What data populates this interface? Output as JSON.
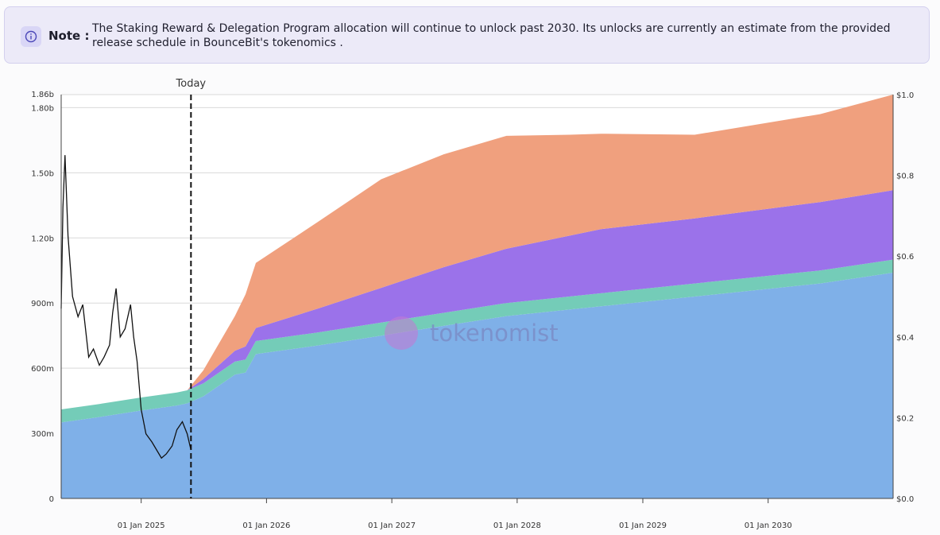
{
  "note": {
    "label": "Note",
    "colon": ":",
    "text": "The Staking Reward & Delegation Program allocation will continue to unlock past 2030. Its unlocks are currently an estimate from the provided release schedule in BounceBit's tokenomics .",
    "icon": "info-icon"
  },
  "watermark": "tokenomist",
  "chart_data": {
    "type": "area",
    "stacked": true,
    "grid": "horizontal",
    "legend": "none",
    "today_label": "Today",
    "x_range": [
      "2024-05-13",
      "2030-12-31"
    ],
    "x_ticks": [
      "01 Jan 2025",
      "01 Jan 2026",
      "01 Jan 2027",
      "01 Jan 2028",
      "01 Jan 2029",
      "01 Jan 2030"
    ],
    "x_tick_dates": [
      "2025-01-01",
      "2026-01-01",
      "2027-01-01",
      "2028-01-01",
      "2029-01-01",
      "2030-01-01"
    ],
    "today_date": "2025-05-26",
    "left_axis": {
      "ylim": [
        0,
        1860000000
      ],
      "ticks": [
        0,
        300000000,
        600000000,
        900000000,
        1200000000,
        1500000000,
        1800000000,
        1860000000
      ],
      "tick_labels": [
        "0",
        "300m",
        "600m",
        "900m",
        "1.20b",
        "1.50b",
        "1.80b",
        "1.86b"
      ]
    },
    "right_axis": {
      "ylim": [
        0,
        1.0
      ],
      "ticks": [
        0,
        0.2,
        0.4,
        0.6,
        0.8,
        1.0
      ],
      "tick_labels": [
        "$0.0",
        "$0.2",
        "$0.4",
        "$0.6",
        "$0.8",
        "$1.0"
      ]
    },
    "x": [
      "2024-05-13",
      "2024-09-01",
      "2025-01-01",
      "2025-04-15",
      "2025-05-15",
      "2025-07-01",
      "2025-10-01",
      "2025-11-01",
      "2025-12-01",
      "2026-06-01",
      "2026-12-01",
      "2027-06-01",
      "2027-12-01",
      "2028-06-01",
      "2028-09-01",
      "2029-06-01",
      "2030-06-01",
      "2030-12-31"
    ],
    "series": [
      {
        "color": "#7fb0e8",
        "values": [
          350000000,
          375000000,
          405000000,
          428000000,
          438000000,
          470000000,
          570000000,
          580000000,
          665000000,
          705000000,
          750000000,
          795000000,
          840000000,
          870000000,
          885000000,
          930000000,
          990000000,
          1040000000
        ]
      },
      {
        "color": "#74ccb8",
        "values": [
          60000000,
          60000000,
          60000000,
          60000000,
          60000000,
          60000000,
          60000000,
          60000000,
          60000000,
          60000000,
          60000000,
          60000000,
          60000000,
          60000000,
          60000000,
          60000000,
          60000000,
          60000000
        ]
      },
      {
        "color": "#9b72ea",
        "values": [
          0,
          0,
          0,
          0,
          0,
          20000000,
          50000000,
          60000000,
          60000000,
          110000000,
          160000000,
          210000000,
          250000000,
          280000000,
          295000000,
          300000000,
          315000000,
          320000000
        ]
      },
      {
        "color": "#f0a07e",
        "values": [
          0,
          0,
          0,
          0,
          0,
          40000000,
          160000000,
          240000000,
          300000000,
          400000000,
          500000000,
          520000000,
          520000000,
          465000000,
          440000000,
          385000000,
          405000000,
          440000000
        ]
      }
    ],
    "price_line": {
      "color": "#111111",
      "x": [
        "2024-05-13",
        "2024-05-18",
        "2024-05-24",
        "2024-06-02",
        "2024-06-15",
        "2024-07-01",
        "2024-07-15",
        "2024-08-01",
        "2024-08-15",
        "2024-09-01",
        "2024-09-15",
        "2024-10-01",
        "2024-10-10",
        "2024-10-20",
        "2024-11-01",
        "2024-11-15",
        "2024-12-01",
        "2024-12-10",
        "2024-12-20",
        "2025-01-01",
        "2025-01-15",
        "2025-02-01",
        "2025-02-15",
        "2025-03-01",
        "2025-03-15",
        "2025-04-01",
        "2025-04-15",
        "2025-05-01",
        "2025-05-15",
        "2025-05-26"
      ],
      "values": [
        0.47,
        0.72,
        0.85,
        0.65,
        0.5,
        0.45,
        0.48,
        0.35,
        0.37,
        0.33,
        0.35,
        0.38,
        0.46,
        0.52,
        0.4,
        0.42,
        0.48,
        0.4,
        0.34,
        0.22,
        0.16,
        0.14,
        0.12,
        0.1,
        0.11,
        0.13,
        0.17,
        0.19,
        0.16,
        0.12
      ]
    }
  }
}
